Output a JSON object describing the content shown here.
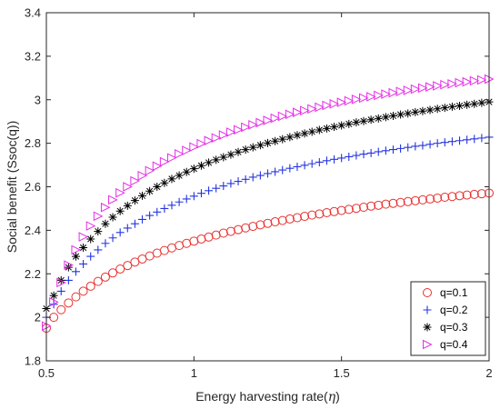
{
  "chart_data": {
    "type": "scatter",
    "xlabel": "Energy harvesting rate(",
    "xlabel_symbol": "η",
    "xlabel_suffix": ")",
    "ylabel": "Social benefit (Ssoc(q))",
    "xlim": [
      0.5,
      2
    ],
    "ylim": [
      1.8,
      3.4
    ],
    "xticks": [
      0.5,
      1,
      1.5,
      2
    ],
    "xtick_labels": [
      "0.5",
      "1",
      "1.5",
      "2"
    ],
    "yticks": [
      1.8,
      2,
      2.2,
      2.4,
      2.6,
      2.8,
      3,
      3.2,
      3.4
    ],
    "ytick_labels": [
      "1.8",
      "2",
      "2.2",
      "2.4",
      "2.6",
      "2.8",
      "3",
      "3.2",
      "3.4"
    ],
    "grid": false,
    "legend_position": "bottom-right",
    "x": [
      0.5,
      0.525,
      0.55,
      0.575,
      0.6,
      0.625,
      0.65,
      0.675,
      0.7,
      0.725,
      0.75,
      0.775,
      0.8,
      0.825,
      0.85,
      0.875,
      0.9,
      0.925,
      0.95,
      0.975,
      1.0,
      1.025,
      1.05,
      1.075,
      1.1,
      1.125,
      1.15,
      1.175,
      1.2,
      1.225,
      1.25,
      1.275,
      1.3,
      1.325,
      1.35,
      1.375,
      1.4,
      1.425,
      1.45,
      1.475,
      1.5,
      1.525,
      1.55,
      1.575,
      1.6,
      1.625,
      1.65,
      1.675,
      1.7,
      1.725,
      1.75,
      1.775,
      1.8,
      1.825,
      1.85,
      1.875,
      1.9,
      1.925,
      1.95,
      1.975,
      2.0
    ],
    "series": [
      {
        "name": "q=0.1",
        "marker": "circle",
        "color": "#e8312f",
        "values": [
          1.95,
          2.0,
          2.035,
          2.066,
          2.094,
          2.12,
          2.143,
          2.165,
          2.185,
          2.204,
          2.222,
          2.238,
          2.254,
          2.268,
          2.282,
          2.295,
          2.307,
          2.319,
          2.33,
          2.34,
          2.35,
          2.36,
          2.369,
          2.378,
          2.387,
          2.395,
          2.403,
          2.411,
          2.418,
          2.425,
          2.432,
          2.439,
          2.445,
          2.452,
          2.458,
          2.464,
          2.47,
          2.475,
          2.481,
          2.486,
          2.491,
          2.496,
          2.501,
          2.506,
          2.511,
          2.515,
          2.52,
          2.524,
          2.528,
          2.532,
          2.536,
          2.54,
          2.544,
          2.548,
          2.552,
          2.555,
          2.559,
          2.562,
          2.565,
          2.568,
          2.571
        ]
      },
      {
        "name": "q=0.2",
        "marker": "plus",
        "color": "#2435e0",
        "values": [
          2.0,
          2.06,
          2.12,
          2.17,
          2.21,
          2.245,
          2.28,
          2.31,
          2.34,
          2.365,
          2.39,
          2.41,
          2.43,
          2.45,
          2.468,
          2.484,
          2.5,
          2.515,
          2.53,
          2.544,
          2.557,
          2.57,
          2.582,
          2.593,
          2.604,
          2.615,
          2.625,
          2.634,
          2.644,
          2.652,
          2.661,
          2.669,
          2.677,
          2.685,
          2.692,
          2.699,
          2.706,
          2.713,
          2.72,
          2.726,
          2.732,
          2.738,
          2.744,
          2.75,
          2.755,
          2.761,
          2.766,
          2.771,
          2.776,
          2.781,
          2.786,
          2.79,
          2.795,
          2.8,
          2.804,
          2.808,
          2.812,
          2.816,
          2.82,
          2.824,
          2.828
        ]
      },
      {
        "name": "q=0.3",
        "marker": "star",
        "color": "#000000",
        "values": [
          2.04,
          2.1,
          2.17,
          2.23,
          2.28,
          2.32,
          2.36,
          2.395,
          2.43,
          2.46,
          2.488,
          2.513,
          2.537,
          2.559,
          2.58,
          2.6,
          2.618,
          2.636,
          2.652,
          2.668,
          2.683,
          2.697,
          2.711,
          2.724,
          2.736,
          2.748,
          2.76,
          2.771,
          2.781,
          2.791,
          2.801,
          2.81,
          2.819,
          2.828,
          2.837,
          2.845,
          2.853,
          2.861,
          2.868,
          2.875,
          2.882,
          2.889,
          2.896,
          2.902,
          2.908,
          2.914,
          2.92,
          2.926,
          2.932,
          2.937,
          2.943,
          2.948,
          2.953,
          2.958,
          2.963,
          2.968,
          2.972,
          2.977,
          2.981,
          2.986,
          2.99
        ]
      },
      {
        "name": "q=0.4",
        "marker": "triangle-right",
        "color": "#e62ee6",
        "values": [
          1.96,
          2.07,
          2.16,
          2.24,
          2.31,
          2.37,
          2.42,
          2.465,
          2.505,
          2.54,
          2.572,
          2.6,
          2.627,
          2.651,
          2.674,
          2.695,
          2.715,
          2.733,
          2.751,
          2.767,
          2.783,
          2.798,
          2.812,
          2.825,
          2.838,
          2.851,
          2.862,
          2.874,
          2.885,
          2.895,
          2.905,
          2.915,
          2.924,
          2.933,
          2.942,
          2.95,
          2.958,
          2.966,
          2.974,
          2.981,
          2.988,
          2.995,
          3.002,
          3.008,
          3.014,
          3.02,
          3.026,
          3.032,
          3.038,
          3.043,
          3.049,
          3.054,
          3.059,
          3.064,
          3.069,
          3.073,
          3.078,
          3.082,
          3.087,
          3.091,
          3.095
        ]
      }
    ]
  }
}
